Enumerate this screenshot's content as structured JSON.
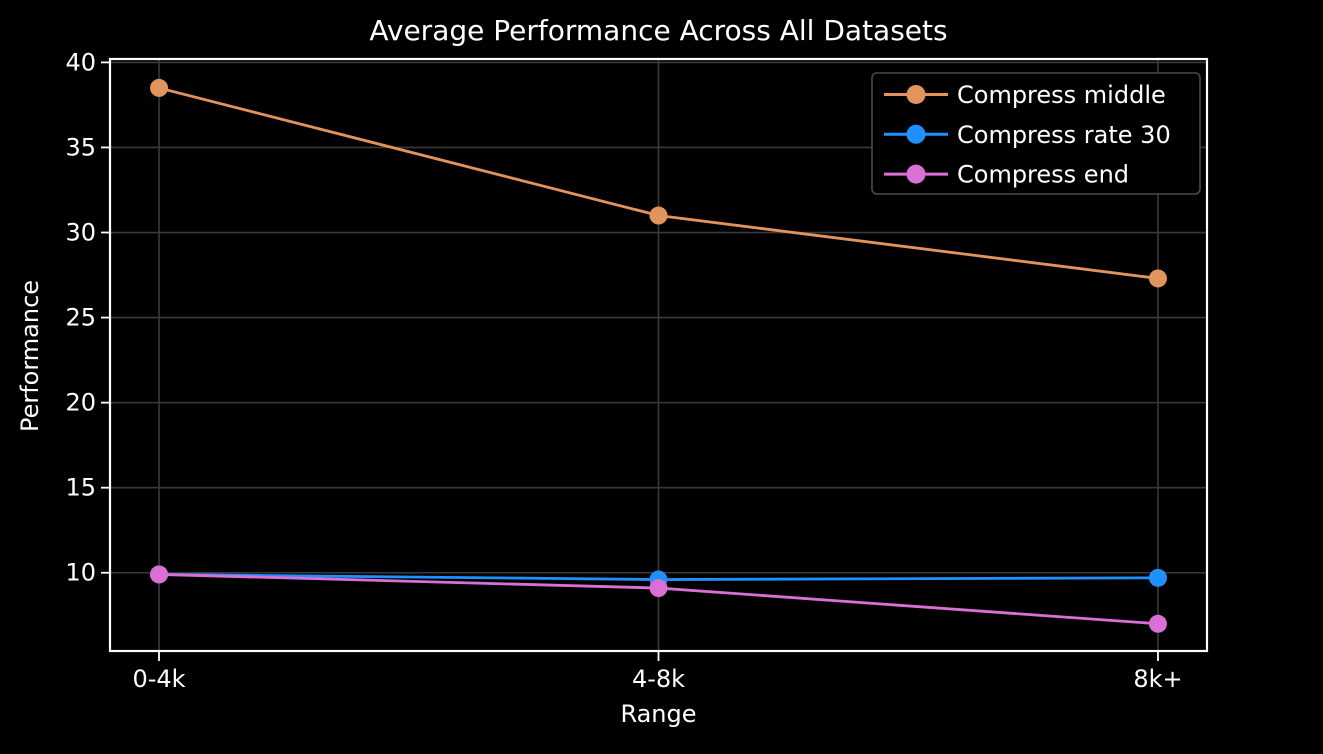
{
  "figure": {
    "title": "Average Performance Across All Datasets",
    "xlabel": "Range",
    "ylabel": "Performance"
  },
  "chart_data": {
    "type": "line",
    "title": "Average Performance Across All Datasets",
    "xlabel": "Range",
    "ylabel": "Performance",
    "categories": [
      "0-4k",
      "4-8k",
      "8k+"
    ],
    "series": [
      {
        "name": "Compress middle",
        "color": "#E2945C",
        "values": [
          38.5,
          31.0,
          27.3
        ]
      },
      {
        "name": "Compress rate 30",
        "color": "#1E90FF",
        "values": [
          9.9,
          9.6,
          9.7
        ]
      },
      {
        "name": "Compress end",
        "color": "#DA70D6",
        "values": [
          9.9,
          9.1,
          7.0
        ]
      }
    ],
    "yticks": [
      10,
      15,
      20,
      25,
      30,
      35,
      40
    ],
    "ylim": [
      5.4,
      40.2
    ],
    "grid": true,
    "legend_position": "upper right",
    "colors": {
      "background": "#000000",
      "text": "#ffffff",
      "grid": "#3a3a3a",
      "spine": "#ffffff",
      "legend_border": "#4a4a4a",
      "legend_fill": "#000000"
    }
  }
}
